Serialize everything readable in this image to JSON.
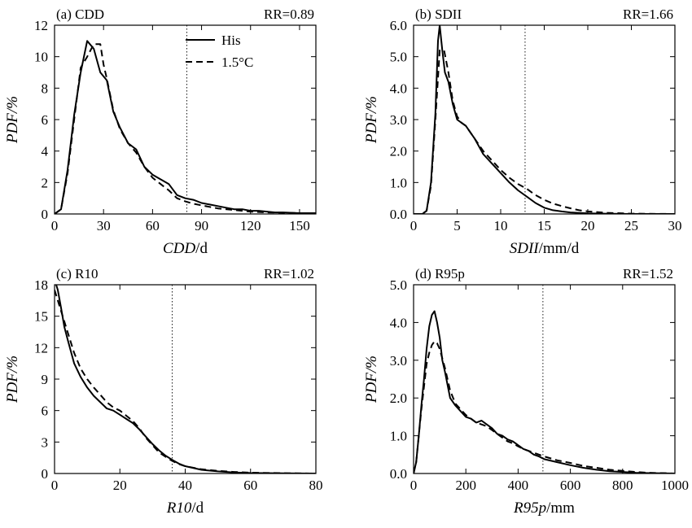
{
  "chart_data": [
    {
      "type": "line",
      "panel_label": "(a) CDD",
      "rr_label": "RR=0.89",
      "xlabel_var": "CDD",
      "xlabel_unit": "/d",
      "ylabel": "PDF/%",
      "xlim": [
        0,
        160
      ],
      "ylim": [
        0,
        12
      ],
      "xticks": [
        0,
        30,
        60,
        90,
        120,
        150
      ],
      "xtick_labels": [
        "0",
        "30",
        "60",
        "90",
        "120",
        "150"
      ],
      "yticks": [
        0,
        2,
        4,
        6,
        8,
        10,
        12
      ],
      "ytick_labels": [
        "0",
        "2",
        "4",
        "6",
        "8",
        "10",
        "12"
      ],
      "vline": 81,
      "legend": {
        "position": "top-center",
        "entries": [
          "His",
          "1.5°C"
        ]
      },
      "series": [
        {
          "name": "His",
          "style": "solid",
          "x": [
            0,
            4,
            8,
            12,
            16,
            20,
            24,
            28,
            32,
            36,
            40,
            45,
            50,
            55,
            60,
            65,
            70,
            75,
            80,
            85,
            90,
            95,
            100,
            105,
            110,
            115,
            120,
            125,
            130,
            135,
            140,
            150,
            160
          ],
          "y": [
            0,
            0.3,
            2.8,
            6.3,
            9.0,
            11.0,
            10.5,
            9.0,
            8.5,
            6.5,
            5.5,
            4.5,
            4.1,
            3.0,
            2.5,
            2.2,
            1.9,
            1.2,
            1.0,
            0.9,
            0.7,
            0.6,
            0.5,
            0.4,
            0.3,
            0.3,
            0.2,
            0.2,
            0.15,
            0.1,
            0.1,
            0.05,
            0.05
          ]
        },
        {
          "name": "1.5°C",
          "style": "dashed",
          "x": [
            0,
            4,
            8,
            12,
            16,
            20,
            24,
            28,
            30,
            32,
            36,
            40,
            45,
            50,
            55,
            60,
            65,
            70,
            75,
            80,
            85,
            90,
            95,
            100,
            110,
            120,
            130,
            140,
            150,
            160
          ],
          "y": [
            0,
            0.3,
            2.6,
            6.0,
            9.3,
            10.0,
            10.8,
            10.8,
            9.5,
            8.6,
            6.6,
            5.4,
            4.5,
            3.9,
            3.0,
            2.3,
            1.9,
            1.5,
            1.0,
            0.8,
            0.65,
            0.55,
            0.45,
            0.35,
            0.25,
            0.15,
            0.1,
            0.08,
            0.05,
            0.02
          ]
        }
      ]
    },
    {
      "type": "line",
      "panel_label": "(b) SDII",
      "rr_label": "RR=1.66",
      "xlabel_var": "SDII",
      "xlabel_unit": "/mm/d",
      "ylabel": "PDF/%",
      "xlim": [
        0,
        30
      ],
      "ylim": [
        0,
        6
      ],
      "xticks": [
        0,
        5,
        10,
        15,
        20,
        25,
        30
      ],
      "xtick_labels": [
        "0",
        "5",
        "10",
        "15",
        "20",
        "25",
        "30"
      ],
      "yticks": [
        0,
        1,
        2,
        3,
        4,
        5,
        6
      ],
      "ytick_labels": [
        "0.0",
        "1.0",
        "2.0",
        "3.0",
        "4.0",
        "5.0",
        "6.0"
      ],
      "vline": 12.8,
      "series": [
        {
          "name": "His",
          "style": "solid",
          "x": [
            0,
            1,
            1.5,
            2,
            2.5,
            2.8,
            3,
            3.3,
            3.6,
            4,
            4.5,
            5,
            5.5,
            6,
            7,
            8,
            9,
            10,
            11,
            12,
            13,
            14,
            15,
            16,
            17,
            18,
            20,
            22,
            25,
            30
          ],
          "y": [
            0,
            0,
            0.1,
            1.0,
            3.2,
            5.5,
            6.0,
            5.2,
            4.5,
            4.2,
            3.5,
            3.0,
            2.9,
            2.8,
            2.4,
            1.9,
            1.6,
            1.3,
            1.0,
            0.75,
            0.55,
            0.35,
            0.2,
            0.12,
            0.08,
            0.05,
            0.02,
            0.01,
            0,
            0
          ]
        },
        {
          "name": "1.5°C",
          "style": "dashed",
          "x": [
            0,
            1,
            1.5,
            2,
            2.5,
            3,
            3.5,
            4,
            4.5,
            5,
            5.5,
            6,
            7,
            8,
            9,
            10,
            11,
            12,
            13,
            14,
            15,
            16,
            17,
            18,
            19,
            20,
            22,
            25,
            30
          ],
          "y": [
            0,
            0,
            0.1,
            0.9,
            3.0,
            5.2,
            5.2,
            4.5,
            3.6,
            3.1,
            2.9,
            2.8,
            2.4,
            2.0,
            1.7,
            1.4,
            1.15,
            0.95,
            0.8,
            0.6,
            0.45,
            0.33,
            0.25,
            0.18,
            0.12,
            0.08,
            0.04,
            0.01,
            0
          ]
        }
      ]
    },
    {
      "type": "line",
      "panel_label": "(c) R10",
      "rr_label": "RR=1.02",
      "xlabel_var": "R10",
      "xlabel_unit": "/d",
      "ylabel": "PDF/%",
      "xlim": [
        0,
        80
      ],
      "ylim": [
        0,
        18
      ],
      "xticks": [
        0,
        20,
        40,
        60,
        80
      ],
      "xtick_labels": [
        "0",
        "20",
        "40",
        "60",
        "80"
      ],
      "yticks": [
        0,
        3,
        6,
        9,
        12,
        15,
        18
      ],
      "ytick_labels": [
        "0",
        "3",
        "6",
        "9",
        "12",
        "15",
        "18"
      ],
      "vline": 36,
      "series": [
        {
          "name": "His",
          "style": "solid",
          "x": [
            0,
            1,
            2,
            3,
            4,
            6,
            8,
            10,
            12,
            14,
            16,
            18,
            20,
            22,
            24,
            26,
            28,
            30,
            32,
            34,
            36,
            38,
            40,
            45,
            50,
            55,
            60,
            70,
            80
          ],
          "y": [
            18.5,
            17.5,
            15.8,
            14.0,
            12.8,
            10.5,
            9.2,
            8.2,
            7.4,
            6.8,
            6.2,
            6.0,
            5.6,
            5.2,
            4.8,
            4.2,
            3.5,
            2.8,
            2.2,
            1.7,
            1.3,
            0.95,
            0.7,
            0.35,
            0.2,
            0.1,
            0.05,
            0.02,
            0
          ]
        },
        {
          "name": "1.5°C",
          "style": "dashed",
          "x": [
            0,
            1,
            2,
            3,
            4,
            6,
            8,
            10,
            12,
            14,
            16,
            18,
            20,
            22,
            24,
            26,
            28,
            30,
            32,
            34,
            36,
            38,
            40,
            45,
            50,
            55,
            60,
            70,
            80
          ],
          "y": [
            17.5,
            16.5,
            15.5,
            14.5,
            13.5,
            11.5,
            10.0,
            9.0,
            8.2,
            7.5,
            6.8,
            6.3,
            6.0,
            5.5,
            5.0,
            4.3,
            3.4,
            2.7,
            2.0,
            1.6,
            1.2,
            0.9,
            0.7,
            0.4,
            0.25,
            0.15,
            0.08,
            0.03,
            0
          ]
        }
      ]
    },
    {
      "type": "line",
      "panel_label": "(d) R95p",
      "rr_label": "RR=1.52",
      "xlabel_var": "R95p",
      "xlabel_unit": "/mm",
      "ylabel": "PDF/%",
      "xlim": [
        0,
        1000
      ],
      "ylim": [
        0,
        5
      ],
      "xticks": [
        0,
        200,
        400,
        600,
        800,
        1000
      ],
      "xtick_labels": [
        "0",
        "200",
        "400",
        "600",
        "800",
        "1000"
      ],
      "yticks": [
        0,
        1,
        2,
        3,
        4,
        5
      ],
      "ytick_labels": [
        "0.0",
        "1.0",
        "2.0",
        "3.0",
        "4.0",
        "5.0"
      ],
      "vline": 495,
      "series": [
        {
          "name": "His",
          "style": "solid",
          "x": [
            0,
            10,
            20,
            30,
            40,
            50,
            60,
            70,
            80,
            90,
            100,
            110,
            120,
            140,
            160,
            180,
            200,
            220,
            240,
            260,
            280,
            300,
            320,
            340,
            360,
            380,
            400,
            420,
            440,
            460,
            480,
            500,
            550,
            600,
            650,
            700,
            750,
            800,
            850,
            900,
            950,
            1000
          ],
          "y": [
            0,
            0.3,
            1.0,
            1.8,
            2.5,
            3.3,
            3.9,
            4.2,
            4.3,
            4.0,
            3.6,
            3.0,
            2.7,
            2.0,
            1.8,
            1.65,
            1.5,
            1.45,
            1.35,
            1.4,
            1.3,
            1.2,
            1.05,
            1.0,
            0.9,
            0.85,
            0.75,
            0.65,
            0.6,
            0.5,
            0.45,
            0.38,
            0.3,
            0.22,
            0.15,
            0.1,
            0.06,
            0.04,
            0.02,
            0.01,
            0.005,
            0
          ]
        },
        {
          "name": "1.5°C",
          "style": "dashed",
          "x": [
            0,
            10,
            20,
            30,
            40,
            50,
            60,
            70,
            80,
            90,
            100,
            120,
            140,
            160,
            180,
            200,
            220,
            240,
            260,
            280,
            300,
            320,
            340,
            360,
            380,
            400,
            420,
            440,
            460,
            480,
            500,
            550,
            600,
            650,
            700,
            750,
            800,
            850,
            900,
            950,
            1000
          ],
          "y": [
            0,
            0.3,
            1.0,
            1.7,
            2.3,
            2.9,
            3.2,
            3.4,
            3.5,
            3.45,
            3.3,
            2.8,
            2.2,
            1.85,
            1.7,
            1.55,
            1.45,
            1.35,
            1.3,
            1.25,
            1.15,
            1.05,
            0.95,
            0.85,
            0.8,
            0.72,
            0.65,
            0.6,
            0.55,
            0.5,
            0.45,
            0.35,
            0.28,
            0.2,
            0.15,
            0.1,
            0.07,
            0.04,
            0.02,
            0.01,
            0
          ]
        }
      ]
    }
  ]
}
